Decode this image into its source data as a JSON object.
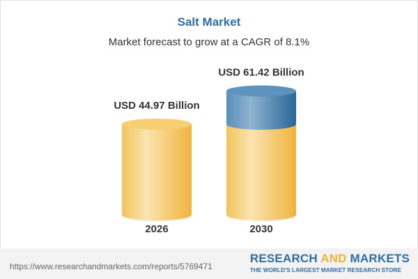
{
  "title": "Salt Market",
  "subtitle": "Market forecast to grow at a CAGR of 8.1%",
  "chart_data": {
    "type": "bar",
    "style": "3d-cylinder",
    "categories": [
      "2026",
      "2030"
    ],
    "values": [
      44.97,
      61.42
    ],
    "data_labels": [
      "USD 44.97 Billion",
      "USD 61.42 Billion"
    ],
    "unit": "USD Billion",
    "title": "Salt Market",
    "subtitle": "Market forecast to grow at a CAGR of 8.1%",
    "cagr": "8.1%",
    "grid": false,
    "colors": {
      "base": "#f3c45a",
      "base_light": "#fae4b0",
      "growth": "#2f6fa3",
      "growth_light": "#8fb3d0"
    }
  },
  "footer": {
    "url": "https://www.researchandmarkets.com/reports/5769471",
    "logo_word1": "RESEARCH ",
    "logo_word2": "AND",
    "logo_word3": " MARKETS",
    "tagline": "THE WORLD'S LARGEST MARKET RESEARCH STORE"
  }
}
